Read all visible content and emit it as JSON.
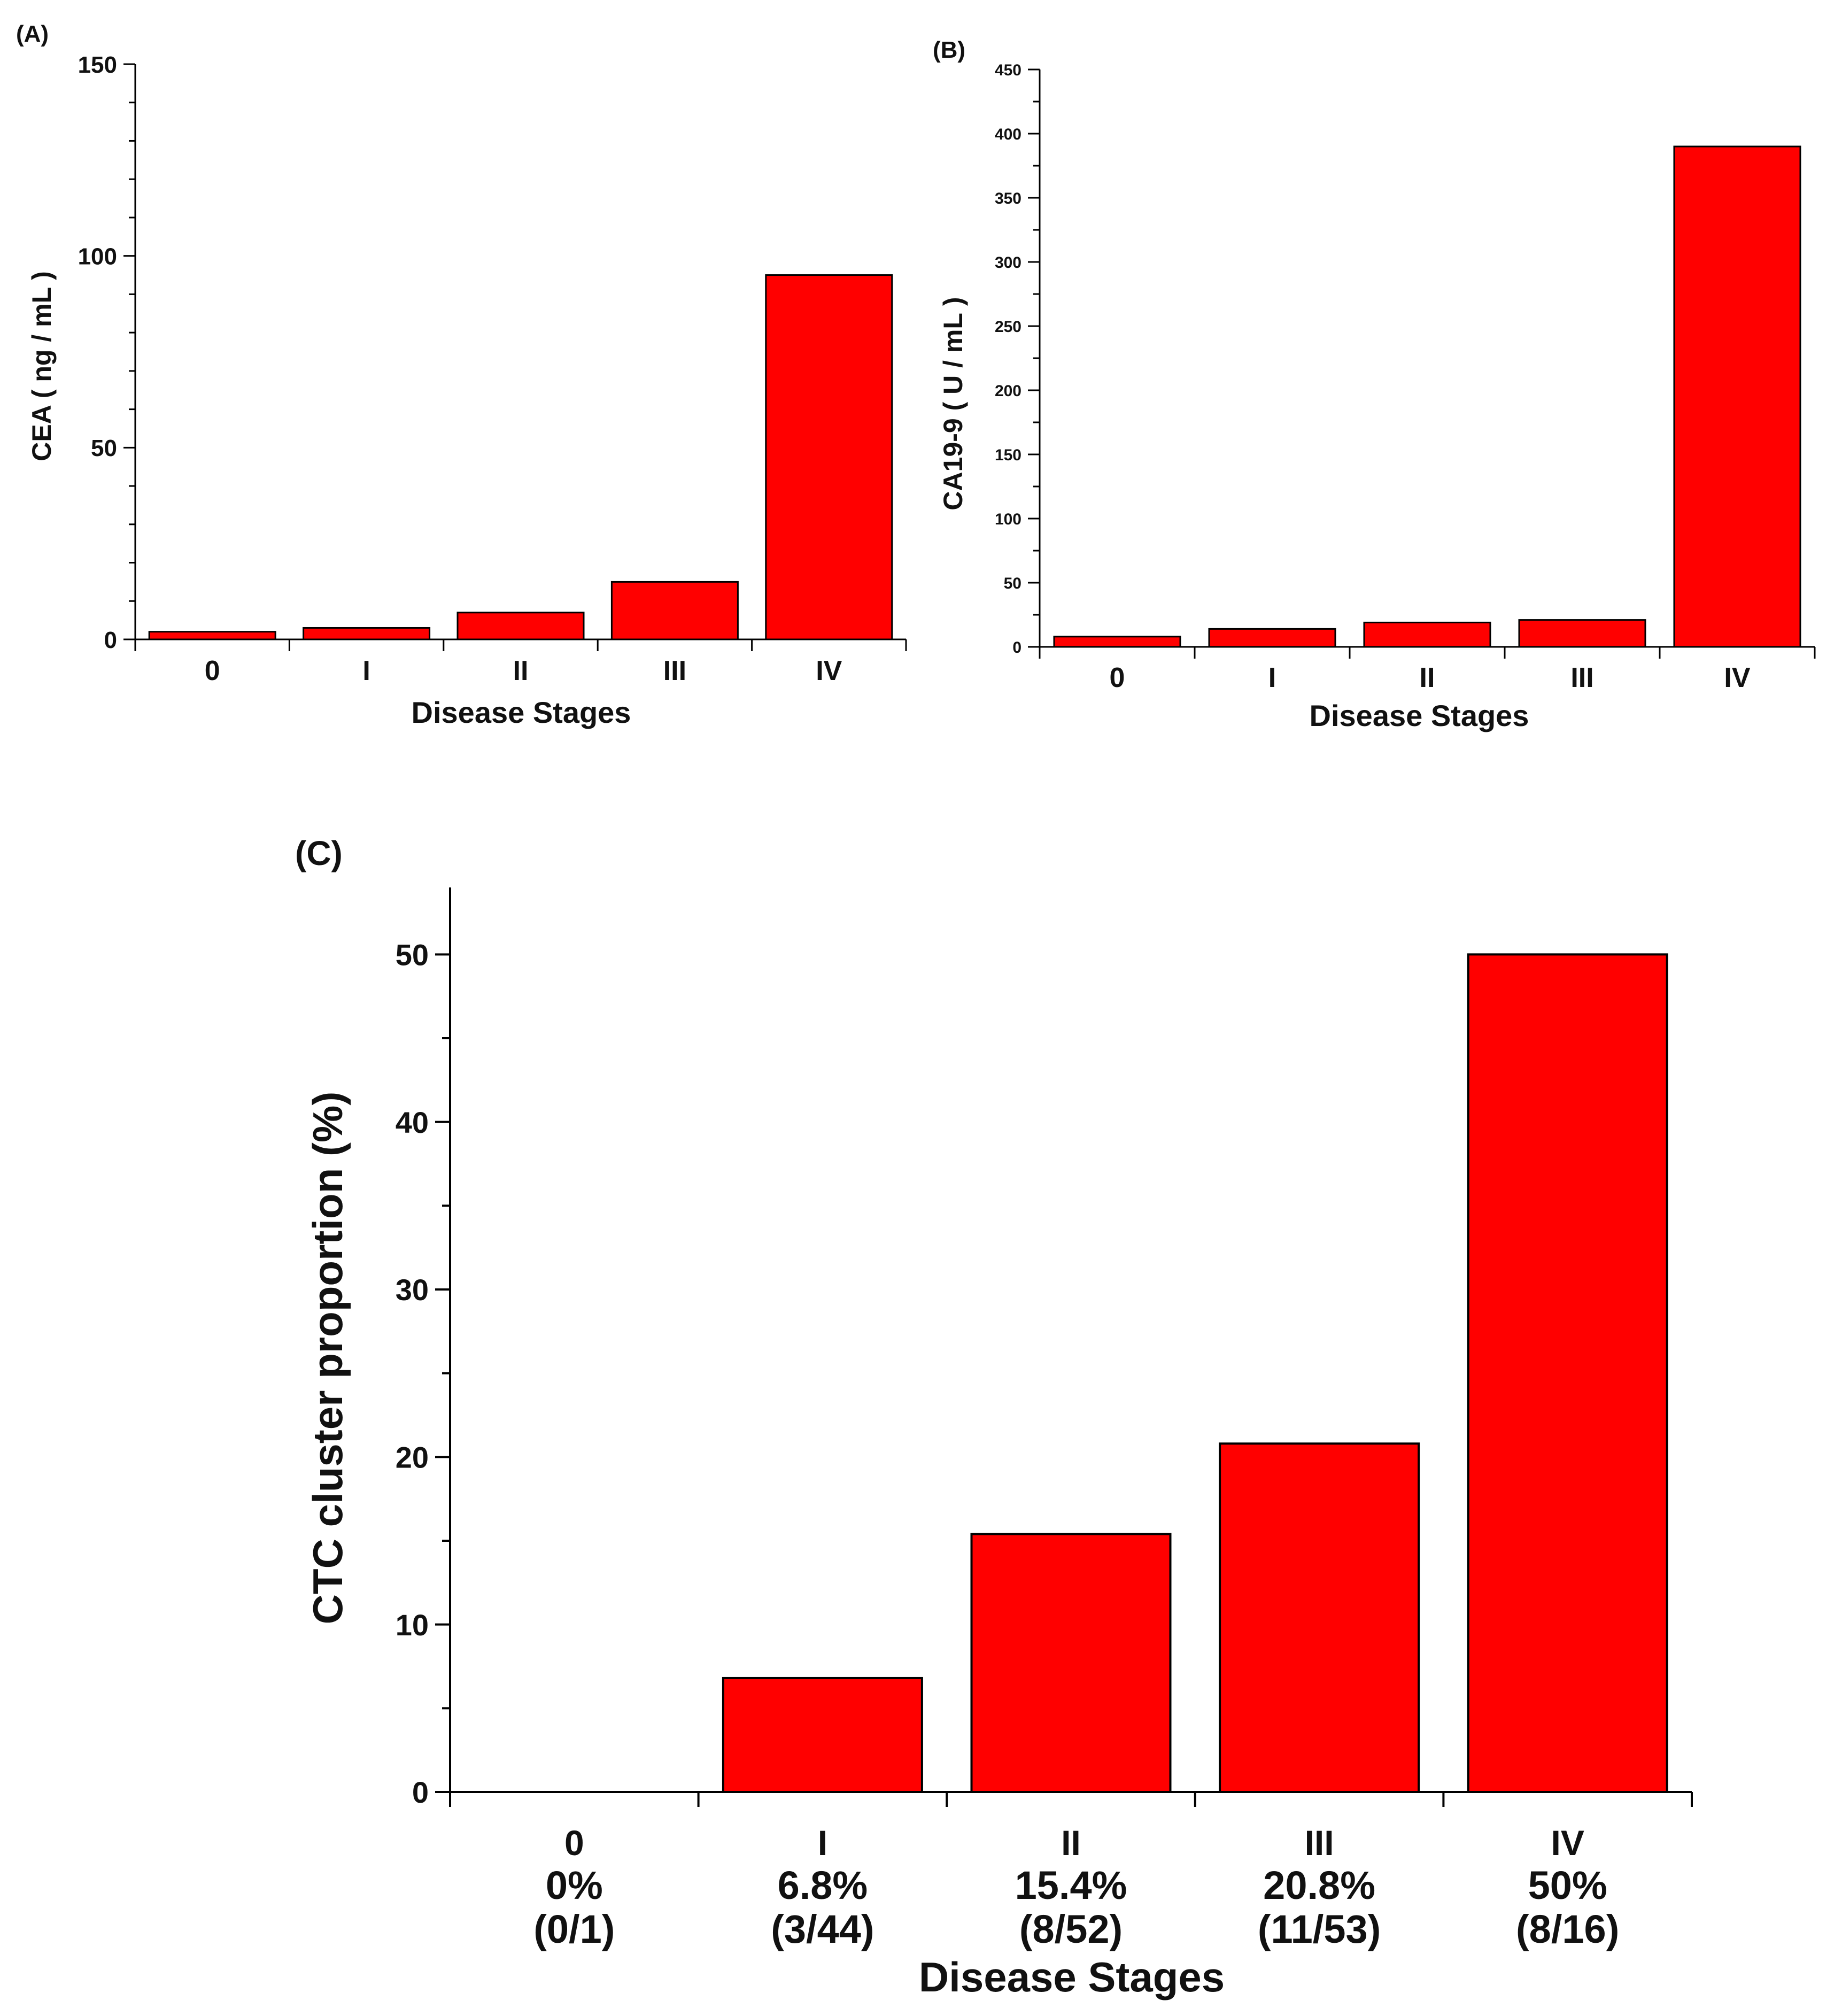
{
  "colors": {
    "bar": "#ff0000",
    "axis": "#000000",
    "text": "#111111"
  },
  "chart_data": [
    {
      "panel": "(A)",
      "type": "bar",
      "categories": [
        "0",
        "I",
        "II",
        "III",
        "IV"
      ],
      "values": [
        2,
        3,
        7,
        15,
        95
      ],
      "xlabel": "Disease Stages",
      "ylabel": "CEA ( ng / mL )",
      "ylim": [
        0,
        150
      ],
      "yticks": [
        "0",
        "50",
        "100",
        "150"
      ],
      "ytick_values": [
        0,
        50,
        100,
        150
      ],
      "minor_step": 10,
      "grid": false
    },
    {
      "panel": "(B)",
      "type": "bar",
      "categories": [
        "0",
        "I",
        "II",
        "III",
        "IV"
      ],
      "values": [
        8,
        14,
        19,
        21,
        390
      ],
      "xlabel": "Disease Stages",
      "ylabel": "CA19-9 ( U / mL )",
      "ylim": [
        0,
        450
      ],
      "yticks": [
        "0",
        "50",
        "100",
        "150",
        "200",
        "250",
        "300",
        "350",
        "400",
        "450"
      ],
      "ytick_values": [
        0,
        50,
        100,
        150,
        200,
        250,
        300,
        350,
        400,
        450
      ],
      "minor_step": 25,
      "grid": false
    },
    {
      "panel": "(C)",
      "type": "bar",
      "categories": [
        "0",
        "I",
        "II",
        "III",
        "IV"
      ],
      "values": [
        0,
        6.8,
        15.4,
        20.8,
        50
      ],
      "percent_labels": [
        "0%",
        "6.8%",
        "15.4%",
        "20.8%",
        "50%"
      ],
      "count_labels": [
        "(0/1)",
        "(3/44)",
        "(8/52)",
        "(11/53)",
        "(8/16)"
      ],
      "xlabel": "Disease Stages",
      "ylabel": "CTC cluster proportion (%)",
      "ylim": [
        0,
        54
      ],
      "yticks": [
        "0",
        "10",
        "20",
        "30",
        "40",
        "50"
      ],
      "ytick_values": [
        0,
        10,
        20,
        30,
        40,
        50
      ],
      "minor_step": 5,
      "grid": false
    }
  ]
}
